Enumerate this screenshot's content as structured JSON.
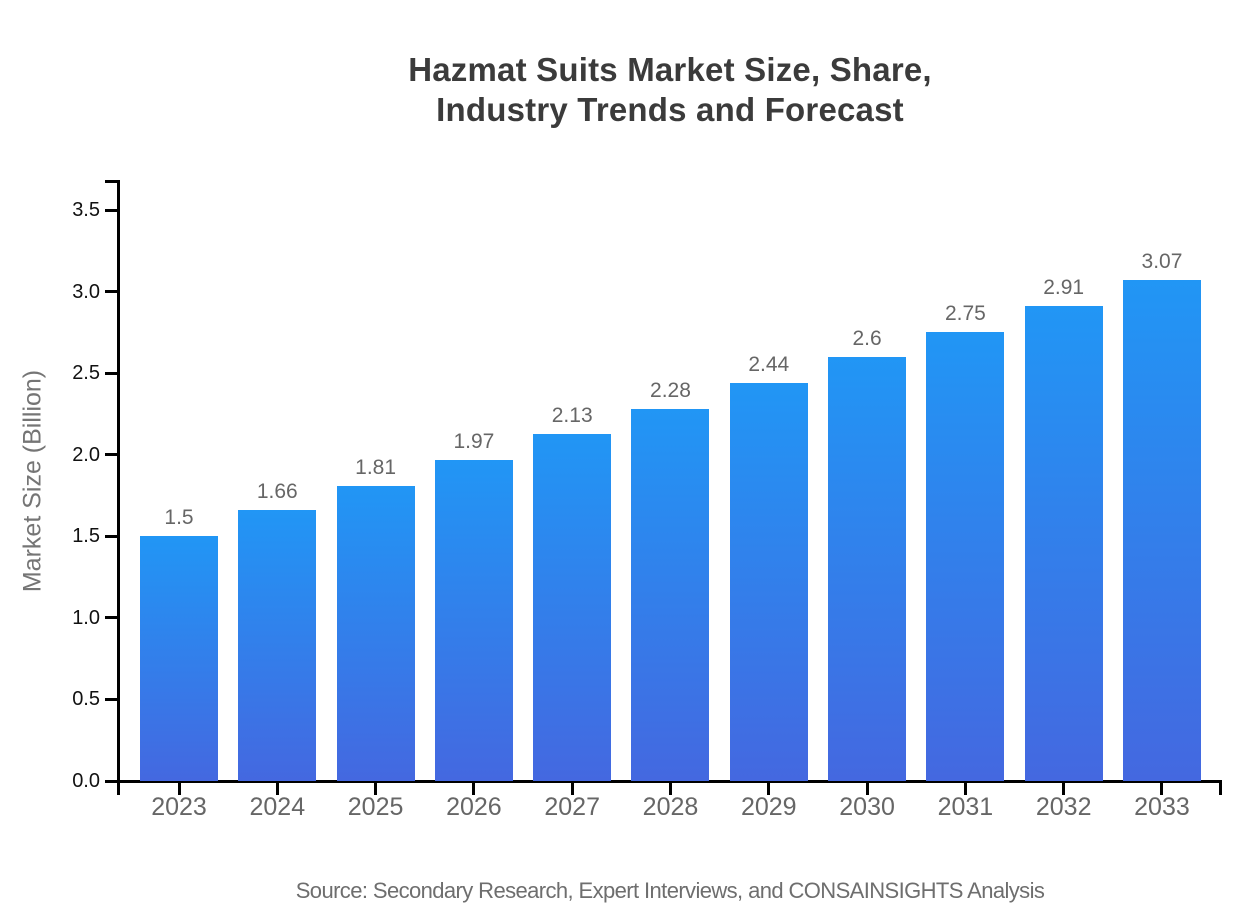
{
  "title": {
    "line1": "Hazmat Suits Market Size, Share,",
    "line2": "Industry Trends and Forecast"
  },
  "source": "Source: Secondary Research, Expert Interviews, and CONSAINSIGHTS Analysis",
  "chart_data": {
    "type": "bar",
    "title": "Hazmat Suits Market Size, Share, Industry Trends and Forecast",
    "categories": [
      "2023",
      "2024",
      "2025",
      "2026",
      "2027",
      "2028",
      "2029",
      "2030",
      "2031",
      "2032",
      "2033"
    ],
    "values": [
      1.5,
      1.66,
      1.81,
      1.97,
      2.13,
      2.28,
      2.44,
      2.6,
      2.75,
      2.91,
      3.07
    ],
    "value_labels": [
      "1.5",
      "1.66",
      "1.81",
      "1.97",
      "2.13",
      "2.28",
      "2.44",
      "2.6",
      "2.75",
      "2.91",
      "3.07"
    ],
    "xlabel": "",
    "ylabel": "Market Size (Billion)",
    "ylim": [
      0,
      3.5
    ],
    "yticks": [
      0.0,
      0.5,
      1.0,
      1.5,
      2.0,
      2.5,
      3.0,
      3.5
    ],
    "ytick_labels": [
      "0.0",
      "0.5",
      "1.0",
      "1.5",
      "2.0",
      "2.5",
      "3.0",
      "3.5"
    ],
    "grid": false,
    "legend": false
  },
  "colors": {
    "background": "#ffffff",
    "bar_gradient_top": "#2196F5",
    "bar_gradient_bottom": "#4468E0",
    "axis": "#000000",
    "title_text": "#3b3b3b",
    "value_label": "#666666",
    "x_tick_label": "#666666",
    "y_tick_label": "#111111",
    "axis_title": "#757575",
    "source_text": "#6e6e6e"
  }
}
